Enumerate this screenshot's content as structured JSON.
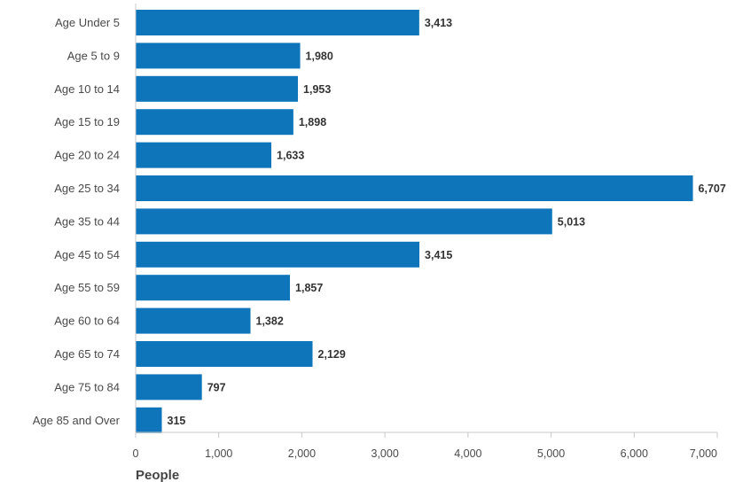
{
  "chart_data": {
    "type": "bar",
    "orientation": "horizontal",
    "categories": [
      "Age Under 5",
      "Age 5 to 9",
      "Age 10 to 14",
      "Age 15 to 19",
      "Age 20 to 24",
      "Age 25 to 34",
      "Age 35 to 44",
      "Age 45 to 54",
      "Age 55 to 59",
      "Age 60 to 64",
      "Age 65 to 74",
      "Age 75 to 84",
      "Age 85 and Over"
    ],
    "values": [
      3413,
      1980,
      1953,
      1898,
      1633,
      6707,
      5013,
      3415,
      1857,
      1382,
      2129,
      797,
      315
    ],
    "value_labels": [
      "3,413",
      "1,980",
      "1,953",
      "1,898",
      "1,633",
      "6,707",
      "5,013",
      "3,415",
      "1,857",
      "1,382",
      "2,129",
      "797",
      "315"
    ],
    "xlabel": "People",
    "ylabel": "",
    "xlim": [
      0,
      7000
    ],
    "ticks": [
      0,
      1000,
      2000,
      3000,
      4000,
      5000,
      6000,
      7000
    ],
    "tick_labels": [
      "0",
      "1,000",
      "2,000",
      "3,000",
      "4,000",
      "5,000",
      "6,000",
      "7,000"
    ],
    "grid": false,
    "legend": "none",
    "bar_color": "#0e75bb",
    "axis_color": "#c8c8c8"
  }
}
